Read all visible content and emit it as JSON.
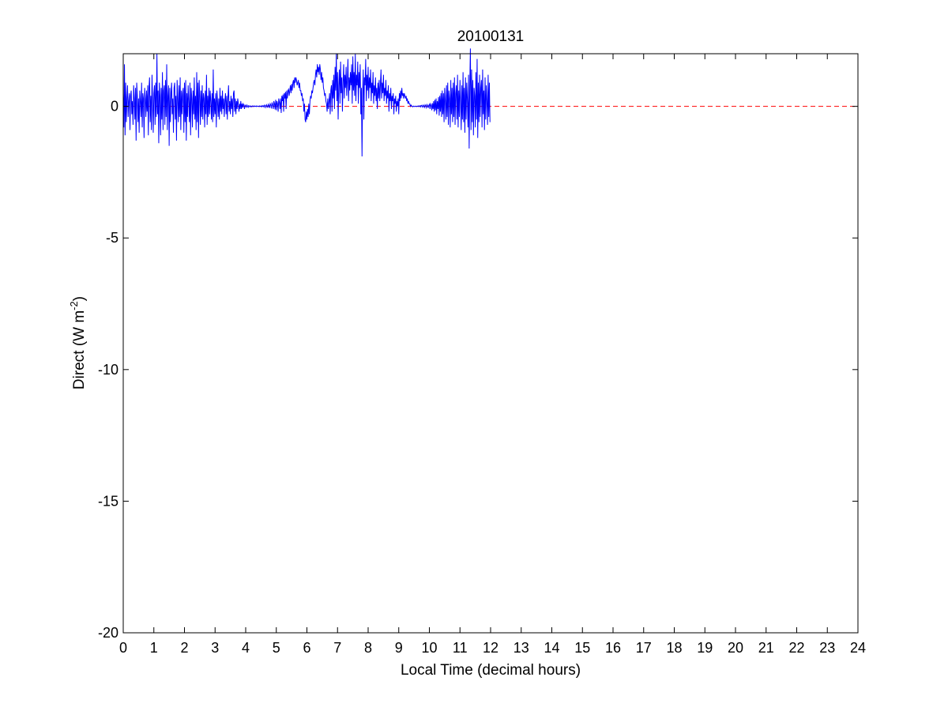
{
  "chart_data": {
    "type": "line",
    "title": "20100131",
    "xlabel": "Local Time (decimal hours)",
    "ylabel": {
      "text": "Direct (W m",
      "superscript": "-2",
      "close": ")"
    },
    "xlim": [
      0,
      24
    ],
    "ylim": [
      -20,
      2
    ],
    "xticks": [
      0,
      1,
      2,
      3,
      4,
      5,
      6,
      7,
      8,
      9,
      10,
      11,
      12,
      13,
      14,
      15,
      16,
      17,
      18,
      19,
      20,
      21,
      22,
      23,
      24
    ],
    "yticks": [
      -20,
      -15,
      -10,
      -5,
      0
    ],
    "grid": false,
    "legend": "none",
    "series": [
      {
        "color": "#0000ff",
        "style": "solid",
        "sample_interval_hours": 0.02,
        "x_start": 0,
        "values": [
          0.5,
          -0.8,
          1.6,
          -1.1,
          0.9,
          -0.6,
          0.3,
          0.8,
          -0.4,
          0.2,
          0.5,
          -0.9,
          0.4,
          0.6,
          -0.3,
          0.2,
          -0.7,
          0.8,
          0.3,
          -0.5,
          0.7,
          -1.3,
          0.9,
          0.4,
          -0.6,
          0.3,
          -1.0,
          0.6,
          0.2,
          -0.4,
          0.9,
          -0.8,
          0.5,
          0.3,
          -1.2,
          0.7,
          0.3,
          -0.4,
          0.6,
          -0.2,
          0.8,
          -1.1,
          0.7,
          1.1,
          -0.6,
          0.4,
          -0.9,
          1.2,
          0.2,
          -1.0,
          0.5,
          0.8,
          -0.7,
          0.9,
          -0.4,
          2.0,
          -0.3,
          0.6,
          -1.4,
          0.9,
          0.4,
          -1.1,
          0.7,
          -0.5,
          1.3,
          -0.9,
          0.6,
          0.8,
          -0.7,
          1.0,
          -0.4,
          1.6,
          -0.9,
          0.4,
          0.8,
          -1.5,
          0.7,
          -0.6,
          0.5,
          0.9,
          -0.3,
          0.3,
          -1.0,
          0.7,
          0.9,
          -0.5,
          0.4,
          -1.3,
          1.0,
          0.3,
          -0.6,
          0.8,
          -0.4,
          1.1,
          -0.9,
          0.6,
          -0.3,
          0.5,
          0.7,
          -1.0,
          0.9,
          -0.6,
          1.0,
          -1.3,
          0.5,
          -0.4,
          0.8,
          0.2,
          -0.6,
          0.9,
          -1.1,
          0.7,
          0.3,
          -0.8,
          0.6,
          -0.3,
          1.1,
          -0.5,
          0.4,
          -0.9,
          1.3,
          -0.6,
          0.9,
          -1.2,
          1.0,
          0.4,
          -0.7,
          0.6,
          -0.4,
          0.8,
          -0.5,
          0.5,
          0.3,
          -0.8,
          0.6,
          -0.3,
          1.2,
          -0.7,
          0.4,
          -0.4,
          0.7,
          -0.3,
          0.6,
          0.2,
          -0.5,
          0.5,
          -0.6,
          1.4,
          -0.4,
          0.3,
          -0.3,
          0.5,
          -0.8,
          0.6,
          0.2,
          -0.4,
          0.3,
          -0.5,
          0.7,
          -0.2,
          0.4,
          -0.3,
          0.6,
          -0.1,
          0.3,
          -0.4,
          0.2,
          0.5,
          -0.3,
          0.4,
          -0.5,
          0.3,
          0.8,
          -0.2,
          0.2,
          -0.3,
          0.4,
          -0.1,
          0.3,
          -0.4,
          0.5,
          0.6,
          -0.2,
          0.3,
          -0.3,
          0.2,
          -0.1,
          0.3,
          0.1,
          -0.2,
          0.1,
          -0.1,
          0.2,
          -0.1,
          0.1,
          -0.05,
          0.1,
          0.05,
          -0.1,
          0.05,
          0.02,
          -0.03,
          0.05,
          0.0,
          -0.04,
          0.03,
          0.01,
          -0.02,
          0.02,
          0.0,
          -0.02,
          0.02,
          0.01,
          -0.01,
          0.02,
          0.0,
          0.01,
          -0.01,
          0.02,
          0.0,
          0.0,
          0.01,
          -0.01,
          0.02,
          0.0,
          0.01,
          -0.02,
          0.03,
          0.0,
          0.02,
          -0.03,
          0.05,
          0.02,
          -0.04,
          0.06,
          0.02,
          -0.05,
          0.08,
          0.03,
          -0.06,
          0.1,
          0.05,
          -0.08,
          0.15,
          0.06,
          -0.1,
          0.2,
          0.1,
          -0.12,
          0.25,
          -0.15,
          0.2,
          0.1,
          -0.2,
          0.3,
          0.15,
          -0.1,
          0.3,
          -0.25,
          0.4,
          0.2,
          0.45,
          -0.2,
          0.5,
          0.3,
          0.55,
          -0.1,
          0.6,
          0.3,
          0.6,
          0.65,
          0.4,
          0.6,
          0.8,
          0.5,
          0.85,
          0.6,
          0.9,
          1.0,
          0.7,
          1.1,
          0.9,
          1.1,
          1.0,
          0.8,
          0.9,
          1.0,
          0.7,
          0.9,
          0.6,
          0.6,
          0.4,
          0.5,
          0.2,
          0.3,
          -0.2,
          0.1,
          -0.5,
          -0.6,
          -0.2,
          -0.5,
          -0.1,
          -0.4,
          0.1,
          -0.3,
          0.2,
          0.4,
          0.3,
          0.6,
          0.5,
          0.7,
          0.9,
          1.0,
          0.8,
          1.2,
          1.4,
          1.1,
          1.6,
          1.3,
          1.5,
          1.2,
          1.6,
          1.4,
          1.0,
          1.3,
          0.9,
          1.1,
          0.7,
          0.6,
          0.4,
          0.5,
          0.2,
          0.1,
          -0.2,
          0.3,
          -0.1,
          0.2,
          0.5,
          -0.3,
          0.6,
          0.8,
          -0.2,
          1.0,
          0.3,
          1.2,
          -0.1,
          1.5,
          0.6,
          2.0,
          0.2,
          1.3,
          -0.5,
          0.8,
          1.4,
          0.1,
          1.7,
          0.5,
          1.1,
          -0.2,
          0.9,
          1.6,
          0.3,
          1.2,
          0.7,
          1.5,
          0.4,
          1.0,
          1.8,
          0.2,
          1.1,
          0.6,
          1.3,
          0.8,
          1.6,
          0.1,
          1.9,
          0.6,
          1.3,
          0.4,
          2.0,
          0.2,
          1.2,
          0.8,
          1.7,
          0.1,
          1.3,
          0.7,
          1.6,
          -0.3,
          0.7,
          -1.9,
          0.5,
          1.4,
          -0.5,
          1.1,
          0.8,
          1.8,
          0.2,
          1.2,
          0.6,
          1.5,
          0.3,
          1.1,
          0.7,
          1.4,
          0.2,
          0.9,
          0.5,
          1.3,
          0.1,
          0.8,
          0.4,
          1.1,
          0.2,
          0.7,
          -0.1,
          0.9,
          0.3,
          1.0,
          0.2,
          0.8,
          1.4,
          0.3,
          0.9,
          0.5,
          1.2,
          0.2,
          0.7,
          0.4,
          1.0,
          0.1,
          0.6,
          0.3,
          0.8,
          -0.2,
          0.5,
          0.2,
          0.7,
          -0.1,
          0.4,
          0.2,
          0.5,
          -0.3,
          0.3,
          0.1,
          0.4,
          -0.2,
          0.2,
          0.0,
          0.3,
          -0.3,
          0.5,
          0.2,
          0.6,
          0.3,
          0.7,
          0.4,
          0.5,
          0.3,
          0.5,
          0.4,
          0.3,
          0.4,
          0.2,
          0.3,
          0.1,
          0.2,
          0.1,
          0.1,
          0.0,
          0.05,
          0.02,
          0.0,
          -0.02,
          0.01,
          0.0,
          -0.01,
          0.01,
          0.0,
          -0.01,
          0.01,
          0.0,
          0.02,
          -0.01,
          0.01,
          0.03,
          -0.02,
          0.04,
          0.02,
          -0.03,
          0.05,
          0.01,
          -0.04,
          0.06,
          0.02,
          -0.05,
          0.07,
          0.03,
          -0.06,
          0.04,
          0.08,
          -0.1,
          0.1,
          0.05,
          -0.15,
          0.12,
          -0.1,
          0.2,
          -0.2,
          0.25,
          -0.15,
          0.3,
          -0.3,
          0.2,
          -0.1,
          0.35,
          -0.35,
          0.4,
          -0.2,
          0.5,
          -0.4,
          0.6,
          -0.3,
          0.5,
          -0.6,
          0.7,
          0.2,
          -0.5,
          0.8,
          -0.4,
          0.9,
          -0.7,
          0.6,
          0.3,
          -0.8,
          1.0,
          -0.3,
          0.7,
          -0.6,
          0.9,
          -0.4,
          1.1,
          -0.7,
          0.5,
          0.8,
          -0.5,
          1.2,
          -0.8,
          0.6,
          -0.4,
          1.0,
          0.2,
          -0.9,
          0.8,
          -0.5,
          1.3,
          -0.6,
          0.7,
          -1.0,
          1.1,
          -0.5,
          0.9,
          0.3,
          -0.8,
          1.2,
          -1.6,
          0.8,
          2.2,
          -0.9,
          1.4,
          -0.6,
          1.0,
          -1.1,
          0.7,
          0.4,
          -0.8,
          1.3,
          -0.5,
          1.8,
          -1.2,
          0.9,
          -0.6,
          1.2,
          -0.4,
          0.7,
          1.0,
          -0.8,
          1.4,
          -0.3,
          0.6,
          -0.9,
          1.1,
          -0.5,
          0.8,
          0.2,
          -0.7,
          1.2,
          -0.4,
          0.9,
          -0.6
        ]
      },
      {
        "color": "#ff0000",
        "style": "dashed",
        "x": [
          0,
          24
        ],
        "values": [
          0,
          0
        ]
      }
    ]
  }
}
